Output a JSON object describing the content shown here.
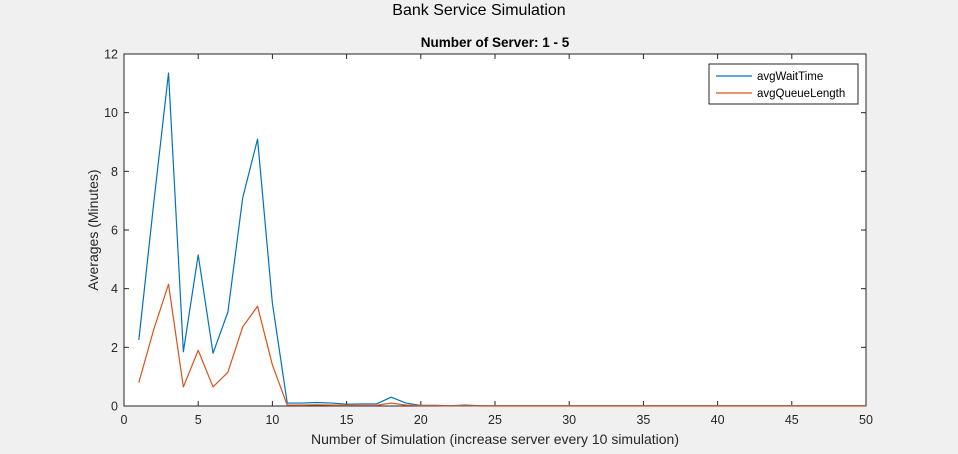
{
  "figure_title": "Bank Service Simulation",
  "colors": {
    "avgWaitTime": "#0072bd",
    "avgQueueLength": "#d95319",
    "background": "#f0f0f0"
  },
  "chart_data": {
    "type": "line",
    "title": "Number of Server: 1 - 5",
    "xlabel": "Number of Simulation (increase server every 10 simulation)",
    "ylabel": "Averages (Minutes)",
    "xlim": [
      0,
      50
    ],
    "ylim": [
      0,
      12
    ],
    "xticks": [
      0,
      5,
      10,
      15,
      20,
      25,
      30,
      35,
      40,
      45,
      50
    ],
    "yticks": [
      0,
      2,
      4,
      6,
      8,
      10,
      12
    ],
    "grid": false,
    "legend_position": "top-right",
    "x": [
      1,
      2,
      3,
      4,
      5,
      6,
      7,
      8,
      9,
      10,
      11,
      12,
      13,
      14,
      15,
      16,
      17,
      18,
      19,
      20,
      21,
      22,
      23,
      24,
      25,
      26,
      27,
      28,
      29,
      30,
      31,
      32,
      33,
      34,
      35,
      36,
      37,
      38,
      39,
      40,
      41,
      42,
      43,
      44,
      45,
      46,
      47,
      48,
      49,
      50
    ],
    "series": [
      {
        "name": "avgWaitTime",
        "values": [
          2.25,
          6.9,
          11.35,
          1.85,
          5.15,
          1.8,
          3.2,
          7.1,
          9.1,
          3.5,
          0.1,
          0.1,
          0.12,
          0.1,
          0.06,
          0.07,
          0.07,
          0.3,
          0.1,
          0.02,
          0.02,
          0.01,
          0.03,
          0.01,
          0.01,
          0.01,
          0.01,
          0.01,
          0.01,
          0.01,
          0.01,
          0.01,
          0.01,
          0.01,
          0.01,
          0.01,
          0.01,
          0.01,
          0.01,
          0.01,
          0.01,
          0.01,
          0.01,
          0.01,
          0.01,
          0.01,
          0.01,
          0.01,
          0.01,
          0.01
        ]
      },
      {
        "name": "avgQueueLength",
        "values": [
          0.8,
          2.6,
          4.15,
          0.65,
          1.9,
          0.65,
          1.15,
          2.7,
          3.4,
          1.4,
          0.03,
          0.03,
          0.04,
          0.03,
          0.02,
          0.02,
          0.02,
          0.1,
          0.03,
          0.01,
          0.01,
          0.0,
          0.01,
          0.0,
          0.0,
          0.0,
          0.0,
          0.0,
          0.0,
          0.0,
          0.0,
          0.0,
          0.0,
          0.0,
          0.0,
          0.0,
          0.0,
          0.0,
          0.0,
          0.0,
          0.0,
          0.0,
          0.0,
          0.0,
          0.0,
          0.0,
          0.0,
          0.0,
          0.0,
          0.0
        ]
      }
    ]
  }
}
